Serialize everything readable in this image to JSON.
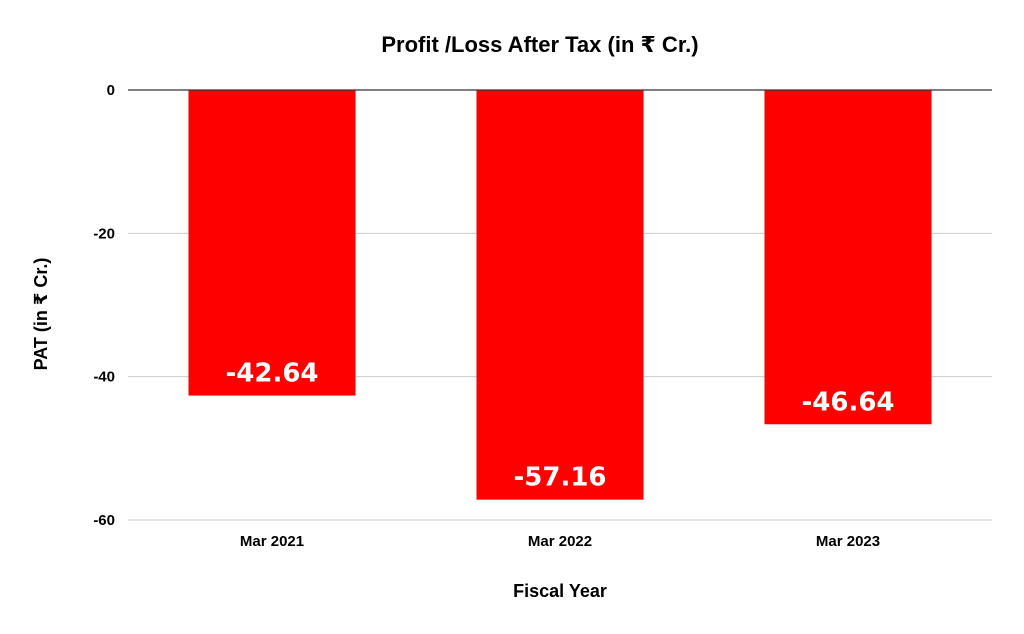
{
  "chart_data": {
    "type": "bar",
    "title": "Profit /Loss After Tax (in ₹ Cr.)",
    "xlabel": "Fiscal Year",
    "ylabel": "PAT (in ₹ Cr.)",
    "categories": [
      "Mar 2021",
      "Mar 2022",
      "Mar 2023"
    ],
    "values": [
      -42.64,
      -57.16,
      -46.64
    ],
    "data_labels": [
      "-42.64",
      "-57.16",
      "-46.64"
    ],
    "ylim": [
      -60,
      0
    ],
    "yticks": [
      0,
      -20,
      -40,
      -60
    ],
    "ytick_labels": [
      "0",
      "-20",
      "-40",
      "-60"
    ],
    "grid": true,
    "legend": "none",
    "colors": {
      "bar": "#ff0000",
      "grid": "#cccccc",
      "zero_line": "#333333",
      "data_label": "#ffffff"
    }
  }
}
